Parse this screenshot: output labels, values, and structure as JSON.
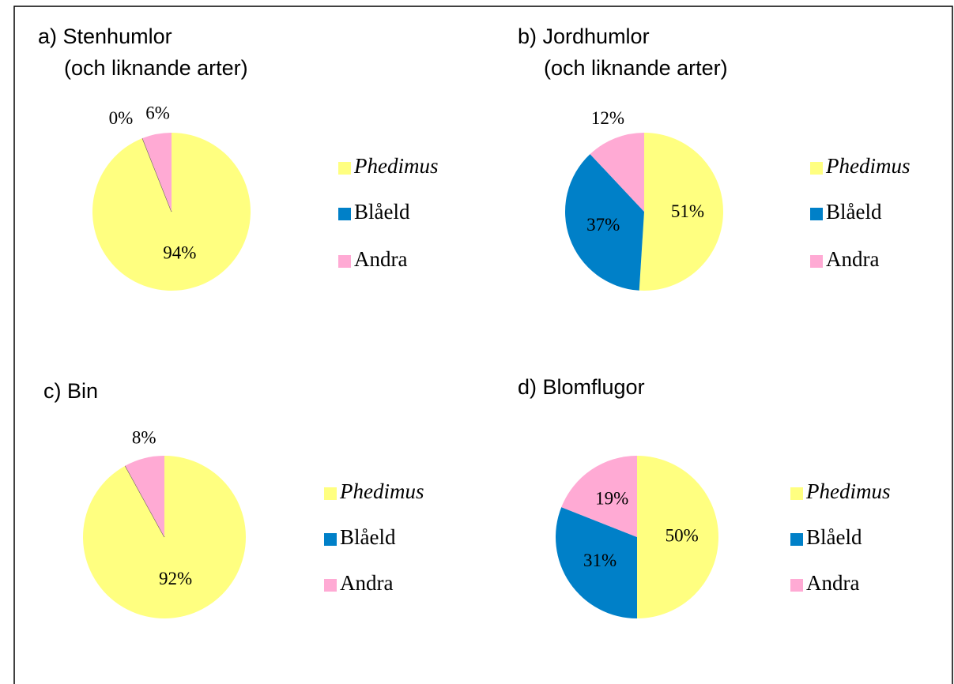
{
  "chart_data": [
    {
      "type": "pie",
      "title": "a) Stenhumlor",
      "subtitle": "(och liknande arter)",
      "categories": [
        "Phedimus",
        "Blåeld",
        "Andra"
      ],
      "values": [
        94,
        0,
        6
      ],
      "value_labels": [
        "94%",
        "0%",
        "6%"
      ],
      "colors": [
        "#ffff80",
        "#0080c8",
        "#ffaad4"
      ]
    },
    {
      "type": "pie",
      "title": "b) Jordhumlor",
      "subtitle": "(och liknande arter)",
      "categories": [
        "Phedimus",
        "Blåeld",
        "Andra"
      ],
      "values": [
        51,
        37,
        12
      ],
      "value_labels": [
        "51%",
        "37%",
        "12%"
      ],
      "colors": [
        "#ffff80",
        "#0080c8",
        "#ffaad4"
      ]
    },
    {
      "type": "pie",
      "title": "c) Bin",
      "categories": [
        "Phedimus",
        "Blåeld",
        "Andra"
      ],
      "values": [
        92,
        0,
        8
      ],
      "value_labels": [
        "92%",
        null,
        "8%"
      ],
      "colors": [
        "#ffff80",
        "#0080c8",
        "#ffaad4"
      ]
    },
    {
      "type": "pie",
      "title": "d) Blomflugor",
      "categories": [
        "Phedimus",
        "Blåeld",
        "Andra"
      ],
      "values": [
        50,
        31,
        19
      ],
      "value_labels": [
        "50%",
        "31%",
        "19%"
      ],
      "colors": [
        "#ffff80",
        "#0080c8",
        "#ffaad4"
      ]
    }
  ]
}
